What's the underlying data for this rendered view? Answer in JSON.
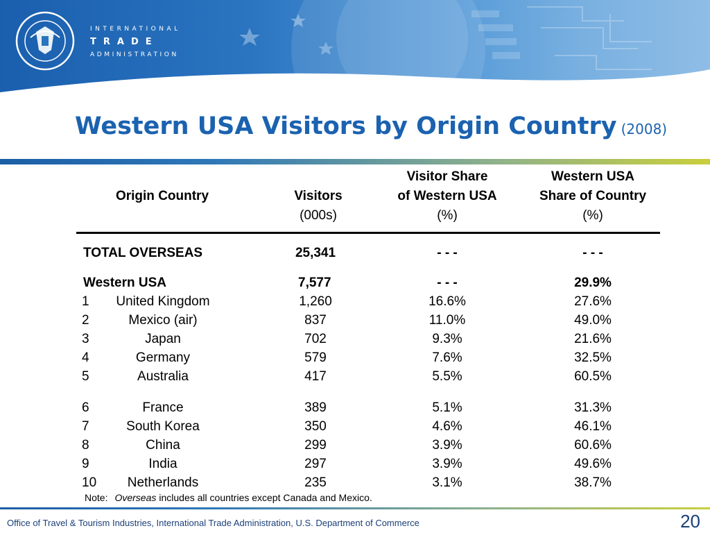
{
  "header": {
    "ita_line1": "INTERNATIONAL",
    "ita_line2": "TRADE",
    "ita_line3": "ADMINISTRATION"
  },
  "title": {
    "main": "Western USA Visitors by Origin Country",
    "year": "(2008)"
  },
  "columns": {
    "origin": "Origin Country",
    "visitors_l1": "Visitors",
    "visitors_unit": "(000s)",
    "share_l1": "Visitor Share",
    "share_l2": "of Western USA",
    "share_unit": "(%)",
    "wshare_l1": "Western USA",
    "wshare_l2": "Share of Country",
    "wshare_unit": "(%)"
  },
  "total_row": {
    "label": "TOTAL OVERSEAS",
    "visitors": "25,341",
    "share": "- - -",
    "wshare": "- - -"
  },
  "western_row": {
    "label": "Western USA",
    "visitors": "7,577",
    "share": "- - -",
    "wshare": "29.9%"
  },
  "rows": [
    {
      "rank": "1",
      "country": "United Kingdom",
      "visitors": "1,260",
      "share": "16.6%",
      "wshare": "27.6%"
    },
    {
      "rank": "2",
      "country": "Mexico (air)",
      "visitors": "837",
      "share": "11.0%",
      "wshare": "49.0%"
    },
    {
      "rank": "3",
      "country": "Japan",
      "visitors": "702",
      "share": "9.3%",
      "wshare": "21.6%"
    },
    {
      "rank": "4",
      "country": "Germany",
      "visitors": "579",
      "share": "7.6%",
      "wshare": "32.5%"
    },
    {
      "rank": "5",
      "country": "Australia",
      "visitors": "417",
      "share": "5.5%",
      "wshare": "60.5%"
    },
    {
      "rank": "6",
      "country": "France",
      "visitors": "389",
      "share": "5.1%",
      "wshare": "31.3%"
    },
    {
      "rank": "7",
      "country": "South Korea",
      "visitors": "350",
      "share": "4.6%",
      "wshare": "46.1%"
    },
    {
      "rank": "8",
      "country": "China",
      "visitors": "299",
      "share": "3.9%",
      "wshare": "60.6%"
    },
    {
      "rank": "9",
      "country": "India",
      "visitors": "297",
      "share": "3.9%",
      "wshare": "49.6%"
    },
    {
      "rank": "10",
      "country": "Netherlands",
      "visitors": "235",
      "share": "3.1%",
      "wshare": "38.7%"
    }
  ],
  "note": {
    "prefix": "Note:",
    "italic": "Overseas",
    "rest": "includes all countries except Canada and Mexico."
  },
  "footer": {
    "text": "Office of Travel & Tourism Industries, International Trade Administration, U.S. Department of Commerce",
    "page": "20"
  },
  "colors": {
    "title_blue": "#1b62b0",
    "banner_blue": "#2a74c0",
    "accent_green": "#c9cf3c"
  }
}
